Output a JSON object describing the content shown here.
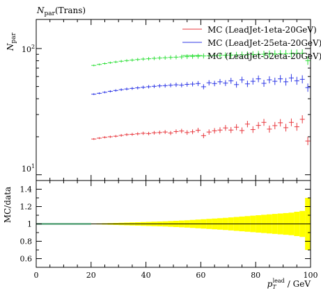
{
  "chart_data": [
    {
      "type": "scatter",
      "title": "N_par (Trans)",
      "title_main": "N",
      "title_sub": "par",
      "title_suffix": "(Trans)",
      "ylabel_main": "N",
      "ylabel_sub": "par",
      "yscale": "log",
      "xlim": [
        0,
        100
      ],
      "ylim": [
        9,
        170
      ],
      "ytick_labels": [
        {
          "base": "10",
          "exp": "1",
          "value": 10
        },
        {
          "base": "10",
          "exp": "2",
          "value": 100
        }
      ],
      "legend_position": "top-right",
      "series": [
        {
          "name": "MC (LeadJet-1eta-20GeV)",
          "color": "#e8373d",
          "x": [
            21,
            23,
            25,
            27,
            29,
            31,
            33,
            35,
            37,
            39,
            41,
            43,
            45,
            47,
            49,
            51,
            53,
            55,
            57,
            59,
            61,
            63,
            65,
            67,
            69,
            71,
            73,
            75,
            77,
            79,
            81,
            83,
            85,
            87,
            89,
            91,
            93,
            95,
            97,
            99
          ],
          "y": [
            19.2,
            19.5,
            19.8,
            20.0,
            20.2,
            20.5,
            20.8,
            20.9,
            21.1,
            21.3,
            21.2,
            21.5,
            21.6,
            21.8,
            21.4,
            22.0,
            22.2,
            21.6,
            21.9,
            22.5,
            20.4,
            21.8,
            22.3,
            22.6,
            23.5,
            22.6,
            23.8,
            22.4,
            25.2,
            22.8,
            24.6,
            26.0,
            23.0,
            24.5,
            25.8,
            23.6,
            26.0,
            24.0,
            27.5,
            18.5
          ]
        },
        {
          "name": "MC (LeadJet-25eta-20GeV)",
          "color": "#2d37e6",
          "x": [
            21,
            23,
            25,
            27,
            29,
            31,
            33,
            35,
            37,
            39,
            41,
            43,
            45,
            47,
            49,
            51,
            53,
            55,
            57,
            59,
            61,
            63,
            65,
            67,
            69,
            71,
            73,
            75,
            77,
            79,
            81,
            83,
            85,
            87,
            89,
            91,
            93,
            95,
            97,
            99
          ],
          "y": [
            43.5,
            44.2,
            45.0,
            45.8,
            46.5,
            47.2,
            47.8,
            48.3,
            48.8,
            49.3,
            49.8,
            50.2,
            50.6,
            50.8,
            51.2,
            51.6,
            51.3,
            52.0,
            52.3,
            52.8,
            49.8,
            53.5,
            52.8,
            54.5,
            53.2,
            55.5,
            51.8,
            56.5,
            52.5,
            55.0,
            57.5,
            53.0,
            56.5,
            55.0,
            57.5,
            54.5,
            58.5,
            55.5,
            57.0,
            49.0
          ]
        },
        {
          "name": "MC (LeadJet-52eta-20GeV)",
          "color": "#2fe03a",
          "x": [
            21,
            23,
            25,
            27,
            29,
            31,
            33,
            35,
            37,
            39,
            41,
            43,
            45,
            47,
            49,
            51,
            53,
            55,
            57,
            59,
            61,
            63,
            65,
            67,
            69,
            71,
            73,
            75,
            77,
            79,
            81,
            83,
            85,
            87,
            89,
            91,
            93,
            95,
            97,
            99
          ],
          "y": [
            73.5,
            74.8,
            76.0,
            77.2,
            78.3,
            79.3,
            80.2,
            81.0,
            81.8,
            82.5,
            83.0,
            83.6,
            84.1,
            84.5,
            85.0,
            85.4,
            85.8,
            86.2,
            86.6,
            86.9,
            87.3,
            87.6,
            87.9,
            88.2,
            88.5,
            88.8,
            89.0,
            89.3,
            89.5,
            89.8,
            90.0,
            90.2,
            90.4,
            90.6,
            90.8,
            91.0,
            91.2,
            91.4,
            91.6,
            80.0
          ]
        }
      ]
    },
    {
      "type": "line",
      "ylabel": "MC/data",
      "xlabel_main": "p",
      "xlabel_sub": "T",
      "xlabel_sup": "lead",
      "xlabel_unit": "/ GeV",
      "xlim": [
        0,
        100
      ],
      "ylim": [
        0.5,
        1.5
      ],
      "xticks": [
        0,
        20,
        40,
        60,
        80,
        100
      ],
      "xtick_labels": [
        "0",
        "20",
        "40",
        "60",
        "80",
        "100"
      ],
      "yticks": [
        0.6,
        0.8,
        1.0,
        1.2,
        1.4
      ],
      "ytick_labels": [
        "0.6",
        "0.8",
        "1",
        "1.2",
        "1.4"
      ],
      "reference_value": 1.0,
      "band_color": "#ffff00",
      "line_color": "#2e8b57",
      "band": {
        "x": [
          21,
          23,
          25,
          27,
          29,
          31,
          33,
          35,
          37,
          39,
          41,
          43,
          45,
          47,
          49,
          51,
          53,
          55,
          57,
          59,
          61,
          63,
          65,
          67,
          69,
          71,
          73,
          75,
          77,
          79,
          81,
          83,
          85,
          87,
          89,
          91,
          93,
          95,
          97,
          99
        ],
        "halfwidth": [
          0.005,
          0.006,
          0.008,
          0.01,
          0.012,
          0.014,
          0.016,
          0.018,
          0.02,
          0.022,
          0.024,
          0.026,
          0.028,
          0.03,
          0.033,
          0.036,
          0.039,
          0.042,
          0.046,
          0.05,
          0.054,
          0.058,
          0.062,
          0.066,
          0.07,
          0.075,
          0.08,
          0.085,
          0.09,
          0.095,
          0.1,
          0.105,
          0.11,
          0.115,
          0.12,
          0.125,
          0.13,
          0.14,
          0.15,
          0.3
        ]
      }
    }
  ]
}
